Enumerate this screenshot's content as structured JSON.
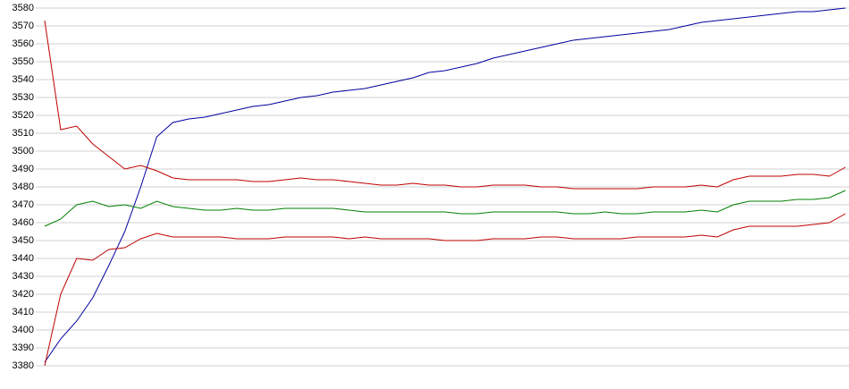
{
  "chart_data": {
    "type": "line",
    "categories": [
      null,
      null,
      null,
      null,
      null,
      null,
      null,
      null,
      null,
      null,
      null,
      null,
      null,
      null,
      null,
      null,
      null,
      null,
      null,
      null,
      null,
      null,
      null,
      null,
      null,
      null,
      null,
      null,
      null,
      null,
      null,
      null,
      null,
      null,
      null,
      null,
      null,
      null,
      null,
      null,
      null,
      null,
      null,
      null,
      null,
      null,
      null,
      null,
      null,
      null,
      null
    ],
    "series": [
      {
        "color": "#0000a0",
        "values": [
          3382,
          3395,
          3405,
          3418,
          3436,
          3455,
          3480,
          3508,
          3516,
          3518,
          3519,
          3521,
          3523,
          3525,
          3526,
          3528,
          3530,
          3531,
          3533,
          3534,
          3535,
          3537,
          3539,
          3541,
          3544,
          3545,
          3547,
          3549,
          3552,
          3554,
          3556,
          3558,
          3560,
          3562,
          3563,
          3564,
          3565,
          3566,
          3567,
          3568,
          3570,
          3572,
          3573,
          3574,
          3575,
          3576,
          3577,
          3578,
          3578,
          3579,
          3580
        ]
      },
      {
        "color": "#c00000",
        "values": [
          3573,
          3512,
          3514,
          3504,
          3497,
          3490,
          3492,
          3489,
          3485,
          3484,
          3484,
          3484,
          3484,
          3483,
          3483,
          3484,
          3485,
          3484,
          3484,
          3483,
          3482,
          3481,
          3481,
          3482,
          3481,
          3481,
          3480,
          3480,
          3481,
          3481,
          3481,
          3480,
          3480,
          3479,
          3479,
          3479,
          3479,
          3479,
          3480,
          3480,
          3480,
          3481,
          3480,
          3484,
          3486,
          3486,
          3486,
          3487,
          3487,
          3486,
          3491
        ]
      },
      {
        "color": "#008000",
        "values": [
          3458,
          3462,
          3470,
          3472,
          3469,
          3470,
          3468,
          3472,
          3469,
          3468,
          3467,
          3467,
          3468,
          3467,
          3467,
          3468,
          3468,
          3468,
          3468,
          3467,
          3466,
          3466,
          3466,
          3466,
          3466,
          3466,
          3465,
          3465,
          3466,
          3466,
          3466,
          3466,
          3466,
          3465,
          3465,
          3466,
          3465,
          3465,
          3466,
          3466,
          3466,
          3467,
          3466,
          3470,
          3472,
          3472,
          3472,
          3473,
          3473,
          3474,
          3478
        ]
      },
      {
        "color": "#c00000",
        "values": [
          3380,
          3420,
          3440,
          3439,
          3445,
          3446,
          3451,
          3454,
          3452,
          3452,
          3452,
          3452,
          3451,
          3451,
          3451,
          3452,
          3452,
          3452,
          3452,
          3451,
          3452,
          3451,
          3451,
          3451,
          3451,
          3450,
          3450,
          3450,
          3451,
          3451,
          3451,
          3452,
          3452,
          3451,
          3451,
          3451,
          3451,
          3452,
          3452,
          3452,
          3452,
          3453,
          3452,
          3456,
          3458,
          3458,
          3458,
          3458,
          3459,
          3460,
          3465
        ]
      }
    ],
    "ylim": [
      3380,
      3580
    ],
    "yticks": [
      3380,
      3390,
      3400,
      3410,
      3420,
      3430,
      3440,
      3450,
      3460,
      3470,
      3480,
      3490,
      3500,
      3510,
      3520,
      3530,
      3540,
      3550,
      3560,
      3570,
      3580
    ],
    "grid": true
  }
}
